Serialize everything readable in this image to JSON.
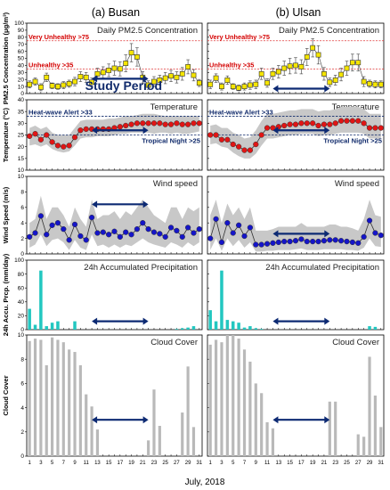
{
  "figure": {
    "column_titles": [
      "(a) Busan",
      "(b) Ulsan"
    ],
    "x_label": "July, 2018",
    "study_period_label": "Study Period",
    "x_tick_labels": [
      "1",
      "3",
      "5",
      "7",
      "9",
      "11",
      "13",
      "15",
      "17",
      "19",
      "21",
      "23",
      "25",
      "27",
      "29",
      "31"
    ],
    "colors": {
      "pm_marker": "#f5e500",
      "temp_marker": "#e01515",
      "wind_marker": "#1515c8",
      "precip_bar": "#22c7c0",
      "cloud_bar": "#b9b9b9",
      "band": "#c8c8c8",
      "arrow": "#0d2a73",
      "red_line": "#e03a3a",
      "blue_line": "#102a6b"
    }
  },
  "chart_data": [
    {
      "type": "line",
      "location": "Busan",
      "title": "Daily PM2.5 Concentration",
      "ylabel": "PM2.5 Concentration (μg/m³)",
      "ylim": [
        0,
        100
      ],
      "yticks": [
        0,
        10,
        20,
        30,
        40,
        50,
        60,
        70,
        80,
        90,
        100
      ],
      "x": [
        1,
        2,
        3,
        4,
        5,
        6,
        7,
        8,
        9,
        10,
        11,
        12,
        13,
        14,
        15,
        16,
        17,
        18,
        19,
        20,
        21,
        22,
        23,
        24,
        25,
        26,
        27,
        28,
        29,
        30,
        31
      ],
      "values": [
        13,
        17,
        9,
        23,
        11,
        10,
        12,
        14,
        17,
        24,
        23,
        16,
        28,
        30,
        33,
        36,
        35,
        43,
        58,
        52,
        23,
        12,
        17,
        19,
        22,
        25,
        23,
        28,
        38,
        26,
        15
      ],
      "error": [
        5,
        5,
        5,
        6,
        4,
        4,
        5,
        5,
        6,
        7,
        7,
        6,
        8,
        8,
        9,
        10,
        10,
        12,
        13,
        13,
        8,
        6,
        7,
        7,
        8,
        8,
        8,
        9,
        10,
        8,
        5
      ],
      "thresholds": [
        {
          "label": "Very Unhealthy >75",
          "value": 75
        },
        {
          "label": "Unhealthy >35",
          "value": 35
        }
      ],
      "study_period": [
        12,
        22
      ]
    },
    {
      "type": "line",
      "location": "Ulsan",
      "title": "Daily PM2.5 Concentration",
      "ylim": [
        0,
        100
      ],
      "x": [
        1,
        2,
        3,
        4,
        5,
        6,
        7,
        8,
        9,
        10,
        11,
        12,
        13,
        14,
        15,
        16,
        17,
        18,
        19,
        20,
        21,
        22,
        23,
        24,
        25,
        26,
        27,
        28,
        29,
        30,
        31
      ],
      "values": [
        13,
        22,
        10,
        19,
        10,
        8,
        10,
        12,
        13,
        28,
        15,
        28,
        31,
        36,
        39,
        40,
        38,
        52,
        65,
        55,
        28,
        16,
        19,
        27,
        36,
        44,
        44,
        17,
        14,
        13,
        13
      ],
      "error": [
        6,
        6,
        5,
        6,
        4,
        4,
        5,
        6,
        6,
        8,
        6,
        8,
        9,
        10,
        11,
        11,
        10,
        12,
        13,
        13,
        9,
        6,
        7,
        9,
        10,
        12,
        12,
        7,
        5,
        5,
        5
      ],
      "thresholds": [
        {
          "label": "Very Unhealthy >75",
          "value": 75
        },
        {
          "label": "Unhealthy >35",
          "value": 35
        }
      ],
      "study_period": [
        12,
        22
      ]
    },
    {
      "type": "line",
      "location": "Busan",
      "title": "Temperature",
      "ylabel": "Temperature (°C)",
      "ylim": [
        10,
        40
      ],
      "yticks": [
        10,
        15,
        20,
        25,
        30,
        35,
        40
      ],
      "x": [
        1,
        2,
        3,
        4,
        5,
        6,
        7,
        8,
        9,
        10,
        11,
        12,
        13,
        14,
        15,
        16,
        17,
        18,
        19,
        20,
        21,
        22,
        23,
        24,
        25,
        26,
        27,
        28,
        29,
        30,
        31
      ],
      "values": [
        24.5,
        25.5,
        23,
        25,
        22,
        20.5,
        20,
        20.5,
        24,
        27,
        27.5,
        27.5,
        27.5,
        27.5,
        27.5,
        28,
        28.5,
        29,
        29.5,
        30,
        30,
        30,
        30,
        30,
        29.5,
        29.5,
        30,
        29.5,
        29.5,
        30,
        30
      ],
      "band_low": [
        20.5,
        21,
        20,
        21,
        19,
        18,
        17.5,
        18,
        20.5,
        23.5,
        24,
        24,
        24.5,
        24.5,
        24.5,
        25,
        25.5,
        25.5,
        26,
        26,
        26,
        26,
        25.5,
        26,
        26,
        25.5,
        26,
        25.5,
        25.5,
        26,
        26.5
      ],
      "band_high": [
        28,
        29,
        27.5,
        28.5,
        26,
        25,
        25,
        25,
        28,
        31,
        31.5,
        31.5,
        31.5,
        31.5,
        32,
        32,
        32.5,
        33,
        33,
        33.5,
        34,
        34,
        34,
        33.5,
        33,
        33,
        33,
        33,
        33,
        33,
        33
      ],
      "thresholds": [
        {
          "label": "Heat-wave Alert >33",
          "value": 33
        },
        {
          "label": "Tropical Night >25",
          "value": 25
        }
      ],
      "study_period": [
        12,
        22
      ]
    },
    {
      "type": "line",
      "location": "Ulsan",
      "title": "Temperature",
      "ylim": [
        10,
        40
      ],
      "x": [
        1,
        2,
        3,
        4,
        5,
        6,
        7,
        8,
        9,
        10,
        11,
        12,
        13,
        14,
        15,
        16,
        17,
        18,
        19,
        20,
        21,
        22,
        23,
        24,
        25,
        26,
        27,
        28,
        29,
        30,
        31
      ],
      "values": [
        25,
        25,
        23,
        23,
        21,
        20,
        18.5,
        18.5,
        21,
        25,
        28,
        28,
        28.5,
        29,
        29.5,
        29.5,
        30,
        30,
        30,
        29,
        29.5,
        29.5,
        30,
        31,
        31,
        31,
        31,
        30,
        28,
        28,
        28
      ],
      "band_low": [
        21,
        21.5,
        20,
        19.5,
        17.5,
        16,
        15,
        15,
        17,
        20.5,
        23.5,
        23.5,
        24,
        24.5,
        25,
        25,
        25.5,
        25.5,
        25.5,
        24.5,
        25,
        25,
        25.5,
        26,
        26,
        26,
        26,
        25.5,
        23.5,
        23.5,
        23.5
      ],
      "band_high": [
        29,
        29.5,
        28,
        28,
        26,
        25,
        23.5,
        24,
        27,
        31,
        34,
        34,
        34.5,
        35,
        35.5,
        35.5,
        36,
        36,
        36,
        35,
        35.5,
        35.5,
        36,
        37,
        37,
        37,
        37,
        36,
        34,
        34,
        34
      ],
      "thresholds": [
        {
          "label": "Heat-wave Alert >33",
          "value": 33
        },
        {
          "label": "Tropical Night >25",
          "value": 25
        }
      ],
      "study_period": [
        12,
        22
      ]
    },
    {
      "type": "line",
      "location": "Busan",
      "title": "Wind speed",
      "ylabel": "Wind Speed (m/s)",
      "ylim": [
        0,
        10
      ],
      "yticks": [
        0,
        2,
        4,
        6,
        8,
        10
      ],
      "x": [
        1,
        2,
        3,
        4,
        5,
        6,
        7,
        8,
        9,
        10,
        11,
        12,
        13,
        14,
        15,
        16,
        17,
        18,
        19,
        20,
        21,
        22,
        23,
        24,
        25,
        26,
        27,
        28,
        29,
        30,
        31
      ],
      "values": [
        2.2,
        2.7,
        4.9,
        2.5,
        3.7,
        4,
        3.2,
        1.8,
        3.8,
        2.3,
        1.8,
        4.7,
        2.7,
        2.8,
        2.5,
        2.9,
        2.2,
        2.8,
        2.5,
        3.2,
        4,
        3.2,
        2.8,
        2.6,
        2.2,
        3.4,
        3,
        2.2,
        3.4,
        2.7,
        3.2
      ],
      "band_low": [
        0.8,
        1.2,
        2.5,
        1,
        1.8,
        2,
        1.5,
        0.5,
        1.8,
        0.8,
        0.5,
        2.5,
        1,
        1.2,
        0.8,
        1.2,
        0.8,
        1.2,
        1,
        1.5,
        2,
        1.5,
        1.2,
        1,
        0.8,
        1.5,
        1.2,
        0.8,
        1.5,
        1,
        1.5
      ],
      "band_high": [
        4,
        4.5,
        7.5,
        4.5,
        6,
        6,
        5,
        3.5,
        6,
        4.5,
        3.5,
        7,
        4.5,
        5,
        5,
        5.5,
        4.5,
        5.5,
        5,
        6,
        7,
        6,
        5,
        4.5,
        4,
        6,
        6,
        4.5,
        6,
        5.5,
        6
      ],
      "study_period": [
        12,
        22
      ]
    },
    {
      "type": "line",
      "location": "Ulsan",
      "title": "Wind speed",
      "ylim": [
        0,
        10
      ],
      "x": [
        1,
        2,
        3,
        4,
        5,
        6,
        7,
        8,
        9,
        10,
        11,
        12,
        13,
        14,
        15,
        16,
        17,
        18,
        19,
        20,
        21,
        22,
        23,
        24,
        25,
        26,
        27,
        28,
        29,
        30,
        31
      ],
      "values": [
        2,
        4.5,
        1.5,
        4,
        2.7,
        3.7,
        2.3,
        3.4,
        1.2,
        1.2,
        1.3,
        1.4,
        1.5,
        1.6,
        1.6,
        1.7,
        1.9,
        1.6,
        1.6,
        1.6,
        1.7,
        1.8,
        1.8,
        1.7,
        1.6,
        1.5,
        1.4,
        2.2,
        4.3,
        2.7,
        2.4
      ],
      "band_low": [
        0.5,
        2,
        0.4,
        2,
        1,
        1.8,
        0.8,
        1.5,
        0.3,
        0.3,
        0.4,
        0.4,
        0.5,
        0.5,
        0.5,
        0.6,
        0.7,
        0.5,
        0.5,
        0.5,
        0.6,
        0.6,
        0.6,
        0.6,
        0.5,
        0.5,
        0.4,
        0.8,
        2,
        1,
        0.9
      ],
      "band_high": [
        5,
        7,
        4,
        6.5,
        5,
        6,
        4.5,
        6,
        3,
        3,
        3,
        3.2,
        3.5,
        3.5,
        3.5,
        3.5,
        4,
        3.5,
        3.5,
        3.5,
        3.5,
        3.8,
        3.8,
        3.5,
        3.5,
        3.3,
        3,
        4.5,
        7,
        5,
        4.8
      ],
      "study_period": [
        12,
        22
      ]
    },
    {
      "type": "bar",
      "location": "Busan",
      "title": "24h Accumulated Precipitation",
      "ylabel": "24h Accu. Prcp. (mm/day)",
      "ylim": [
        0,
        100
      ],
      "yticks": [
        0,
        20,
        40,
        60,
        80,
        100
      ],
      "x": [
        1,
        2,
        3,
        4,
        5,
        6,
        7,
        8,
        9,
        10,
        11,
        12,
        13,
        14,
        15,
        16,
        17,
        18,
        19,
        20,
        21,
        22,
        23,
        24,
        25,
        26,
        27,
        28,
        29,
        30,
        31
      ],
      "values": [
        30,
        7,
        85,
        5,
        10,
        12,
        0,
        0,
        12,
        0,
        0,
        0,
        0,
        0,
        0,
        0,
        0,
        0,
        0,
        0,
        0,
        0,
        0,
        0,
        0,
        0,
        1,
        2,
        3,
        5,
        0
      ],
      "study_period": [
        12,
        22
      ]
    },
    {
      "type": "bar",
      "location": "Ulsan",
      "title": "24h Accumulated Precipitation",
      "ylim": [
        0,
        100
      ],
      "x": [
        1,
        2,
        3,
        4,
        5,
        6,
        7,
        8,
        9,
        10,
        11,
        12,
        13,
        14,
        15,
        16,
        17,
        18,
        19,
        20,
        21,
        22,
        23,
        24,
        25,
        26,
        27,
        28,
        29,
        30,
        31
      ],
      "values": [
        28,
        12,
        85,
        14,
        12,
        10,
        3,
        5,
        2,
        1,
        0,
        0,
        0,
        0,
        0,
        0,
        0,
        0,
        0,
        0,
        0,
        0,
        0,
        0,
        0,
        0,
        0,
        0,
        5,
        4,
        0
      ],
      "study_period": [
        12,
        22
      ]
    },
    {
      "type": "bar",
      "location": "Busan",
      "title": "Cloud Cover",
      "ylabel": "Cloud Cover",
      "ylim": [
        0,
        10
      ],
      "yticks": [
        0,
        2,
        4,
        6,
        8,
        10
      ],
      "x": [
        1,
        2,
        3,
        4,
        5,
        6,
        7,
        8,
        9,
        10,
        11,
        12,
        13,
        14,
        15,
        16,
        17,
        18,
        19,
        20,
        21,
        22,
        23,
        24,
        25,
        26,
        27,
        28,
        29,
        30,
        31
      ],
      "values": [
        9.5,
        9.7,
        9.6,
        7.5,
        9.8,
        9.6,
        9.4,
        8.8,
        8.6,
        7.5,
        5.1,
        4.1,
        2.2,
        0,
        0,
        0,
        0,
        0,
        0,
        0,
        0,
        1.3,
        5.5,
        2.5,
        0,
        0,
        0,
        3.6,
        7.4,
        2.4,
        0
      ],
      "study_period": [
        12,
        22
      ]
    },
    {
      "type": "bar",
      "location": "Ulsan",
      "title": "Cloud Cover",
      "ylim": [
        0,
        10
      ],
      "x": [
        1,
        2,
        3,
        4,
        5,
        6,
        7,
        8,
        9,
        10,
        11,
        12,
        13,
        14,
        15,
        16,
        17,
        18,
        19,
        20,
        21,
        22,
        23,
        24,
        25,
        26,
        27,
        28,
        29,
        30,
        31
      ],
      "values": [
        9.2,
        9.6,
        9.4,
        10,
        10,
        9.7,
        8.8,
        7.8,
        6,
        5.2,
        2.8,
        2.3,
        0,
        0,
        0,
        0,
        0,
        0,
        0,
        0,
        0,
        4.5,
        4.5,
        0,
        0,
        0,
        1.8,
        1.6,
        8.2,
        5,
        2.4
      ],
      "study_period": [
        12,
        22
      ]
    }
  ]
}
